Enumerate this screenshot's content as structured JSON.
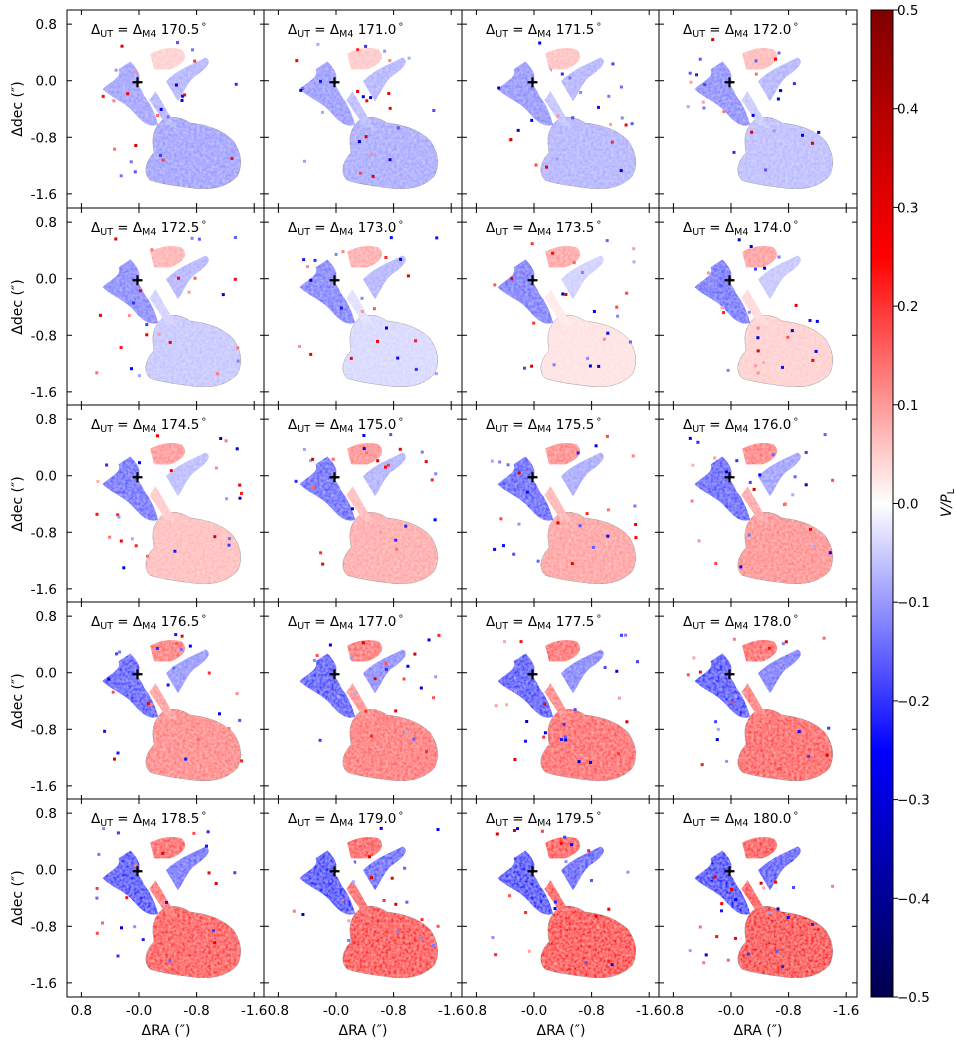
{
  "chart_data": {
    "type": "heatmap",
    "grid": {
      "rows": 5,
      "cols": 4
    },
    "panel_label_prefix": "Δ",
    "panel_label_sub": "UT",
    "panel_label_mid": " = Δ",
    "panel_label_sub2": "M4",
    "panel_label_suffix": "°",
    "panels": [
      {
        "angle": "170.5",
        "polarization": -0.1
      },
      {
        "angle": "171.0",
        "polarization": -0.09
      },
      {
        "angle": "171.5",
        "polarization": -0.08
      },
      {
        "angle": "172.0",
        "polarization": -0.07
      },
      {
        "angle": "172.5",
        "polarization": -0.06
      },
      {
        "angle": "173.0",
        "polarization": -0.04
      },
      {
        "angle": "173.5",
        "polarization": 0.03
      },
      {
        "angle": "174.0",
        "polarization": 0.05
      },
      {
        "angle": "174.5",
        "polarization": 0.07
      },
      {
        "angle": "175.0",
        "polarization": 0.09
      },
      {
        "angle": "175.5",
        "polarization": 0.1
      },
      {
        "angle": "176.0",
        "polarization": 0.12
      },
      {
        "angle": "176.5",
        "polarization": 0.13
      },
      {
        "angle": "177.0",
        "polarization": 0.15
      },
      {
        "angle": "177.5",
        "polarization": 0.17
      },
      {
        "angle": "178.0",
        "polarization": 0.18
      },
      {
        "angle": "178.5",
        "polarization": 0.2
      },
      {
        "angle": "179.0",
        "polarization": 0.22
      },
      {
        "angle": "179.5",
        "polarization": 0.24
      },
      {
        "angle": "180.0",
        "polarization": 0.26
      }
    ],
    "xlabel": "ΔRA (″)",
    "ylabel": "Δdec (″)",
    "xticks": [
      0.8,
      0.0,
      -0.8,
      -1.6
    ],
    "xtick_labels": [
      "0.8",
      "-0.0",
      "-0.8",
      "-1.6"
    ],
    "yticks": [
      0.8,
      0.0,
      -0.8,
      -1.6
    ],
    "ytick_labels": [
      "0.8",
      "0.0",
      "-0.8",
      "-1.6"
    ],
    "xlim": [
      1.0,
      -1.75
    ],
    "ylim": [
      -1.8,
      1.0
    ],
    "colorbar": {
      "label": "V/P",
      "label_sub": "L",
      "range": [
        -0.5,
        0.5
      ],
      "ticks": [
        0.5,
        0.4,
        0.3,
        0.2,
        0.1,
        0.0,
        -0.1,
        -0.2,
        -0.3,
        -0.4,
        -0.5
      ],
      "tick_labels": [
        "0.5",
        "0.4",
        "0.3",
        "0.2",
        "0.1",
        "0.0",
        "−0.1",
        "−0.2",
        "−0.3",
        "−0.4",
        "−0.5"
      ],
      "colormap": "seismic",
      "colors": {
        "low": "#00004c",
        "mid_low": "#0000ff",
        "center": "#ffffff",
        "mid_high": "#ff0000",
        "high": "#800000"
      }
    }
  }
}
